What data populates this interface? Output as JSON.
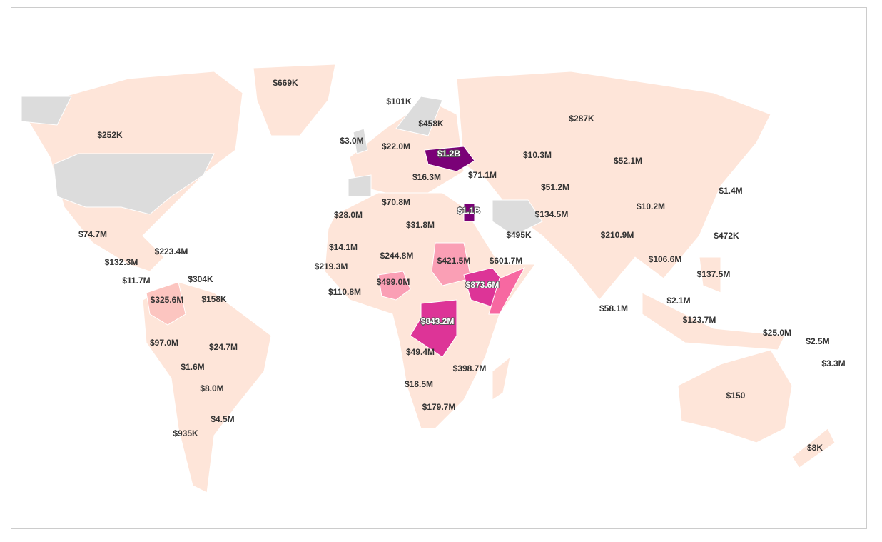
{
  "labels": [
    "$669K",
    "$101K",
    "$252K",
    "$458K",
    "$287K",
    "$3.0M",
    "$22.0M",
    "$1.2B",
    "$10.3M",
    "$52.1M",
    "$16.3M",
    "$71.1M",
    "$51.2M",
    "$1.4M",
    "$70.8M",
    "$10.2M",
    "$28.0M",
    "$1.1B",
    "$134.5M",
    "$31.8M",
    "$74.7M",
    "$495K",
    "$210.9M",
    "$472K",
    "$14.1M",
    "$223.4M",
    "$244.8M",
    "$421.5M",
    "$601.7M",
    "$106.6M",
    "$132.3M",
    "$219.3M",
    "$137.5M",
    "$304K",
    "$11.7M",
    "$499.0M",
    "$873.6M",
    "$110.8M",
    "$325.6M",
    "$158K",
    "$2.1M",
    "$58.1M",
    "$123.7M",
    "$843.2M",
    "$25.0M",
    "$97.0M",
    "$24.7M",
    "$2.5M",
    "$49.4M",
    "$3.3M",
    "$1.6M",
    "$398.7M",
    "$8.0M",
    "$18.5M",
    "$150",
    "$179.7M",
    "$4.5M",
    "$935K",
    "$8K"
  ]
}
